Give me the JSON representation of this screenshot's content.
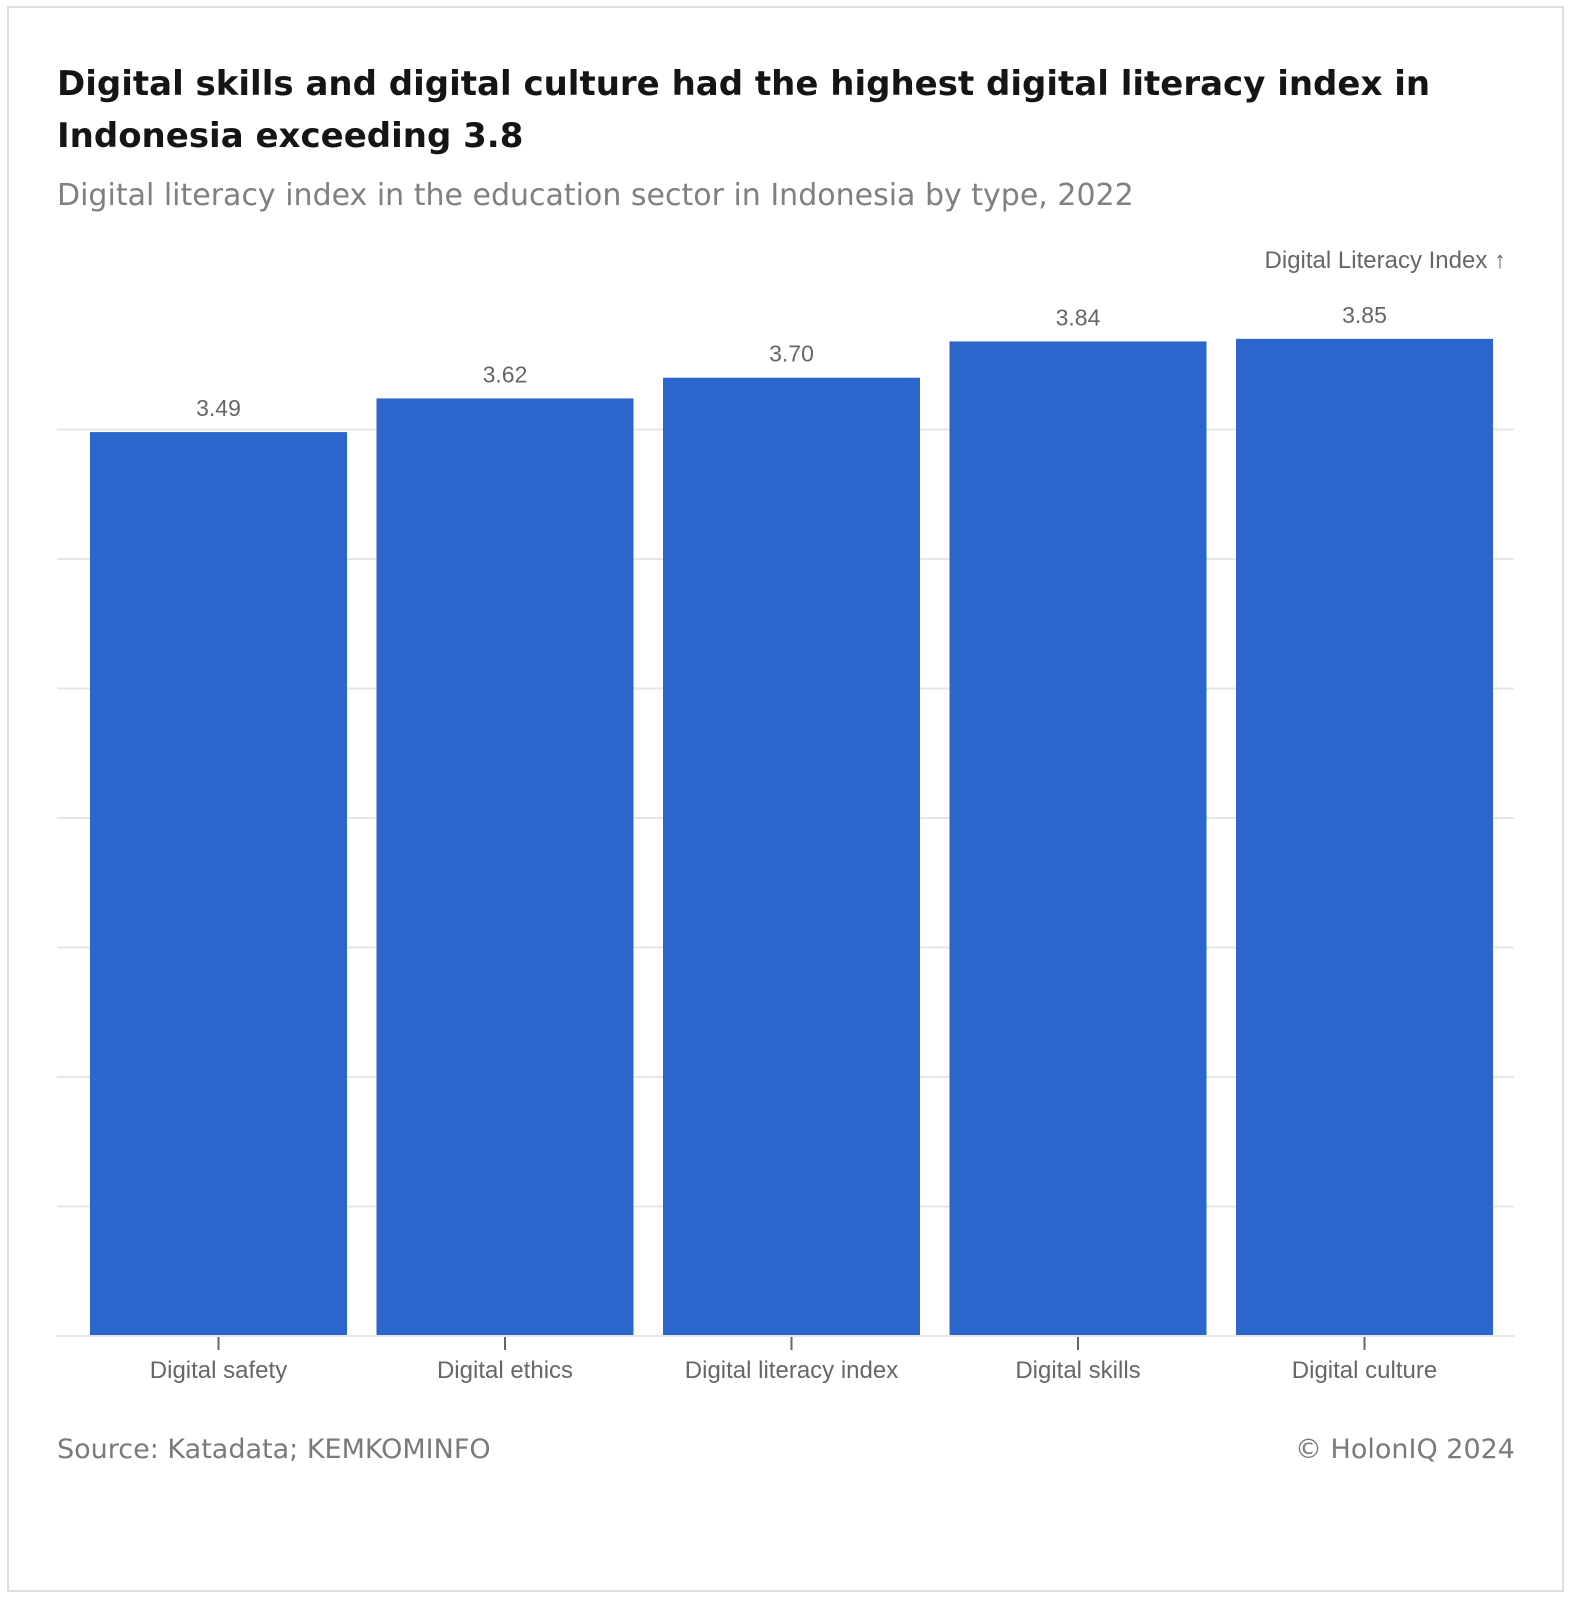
{
  "title": "Digital skills and digital culture had the highest digital literacy index in Indonesia exceeding 3.8",
  "subtitle": "Digital literacy index in the education sector in Indonesia by type, 2022",
  "source": "Source: Katadata; KEMKOMINFO",
  "copyright": "© HolonIQ 2024",
  "colors": {
    "bar": "#2a66cc",
    "grid": "#e6e6e6",
    "axis_text": "#666666"
  },
  "chart_data": {
    "type": "bar",
    "title": "Digital skills and digital culture had the highest digital literacy index in Indonesia exceeding 3.8",
    "subtitle": "Digital literacy index in the education sector in Indonesia by type, 2022",
    "ylabel": "Digital Literacy Index ↑",
    "categories": [
      "Digital safety",
      "Digital ethics",
      "Digital literacy index",
      "Digital skills",
      "Digital culture"
    ],
    "values": [
      3.49,
      3.62,
      3.7,
      3.84,
      3.85
    ],
    "data_labels": [
      "3.49",
      "3.62",
      "3.70",
      "3.84",
      "3.85"
    ],
    "ylim": [
      0,
      4
    ],
    "grid": true,
    "y_tick_labels_shown": false
  }
}
